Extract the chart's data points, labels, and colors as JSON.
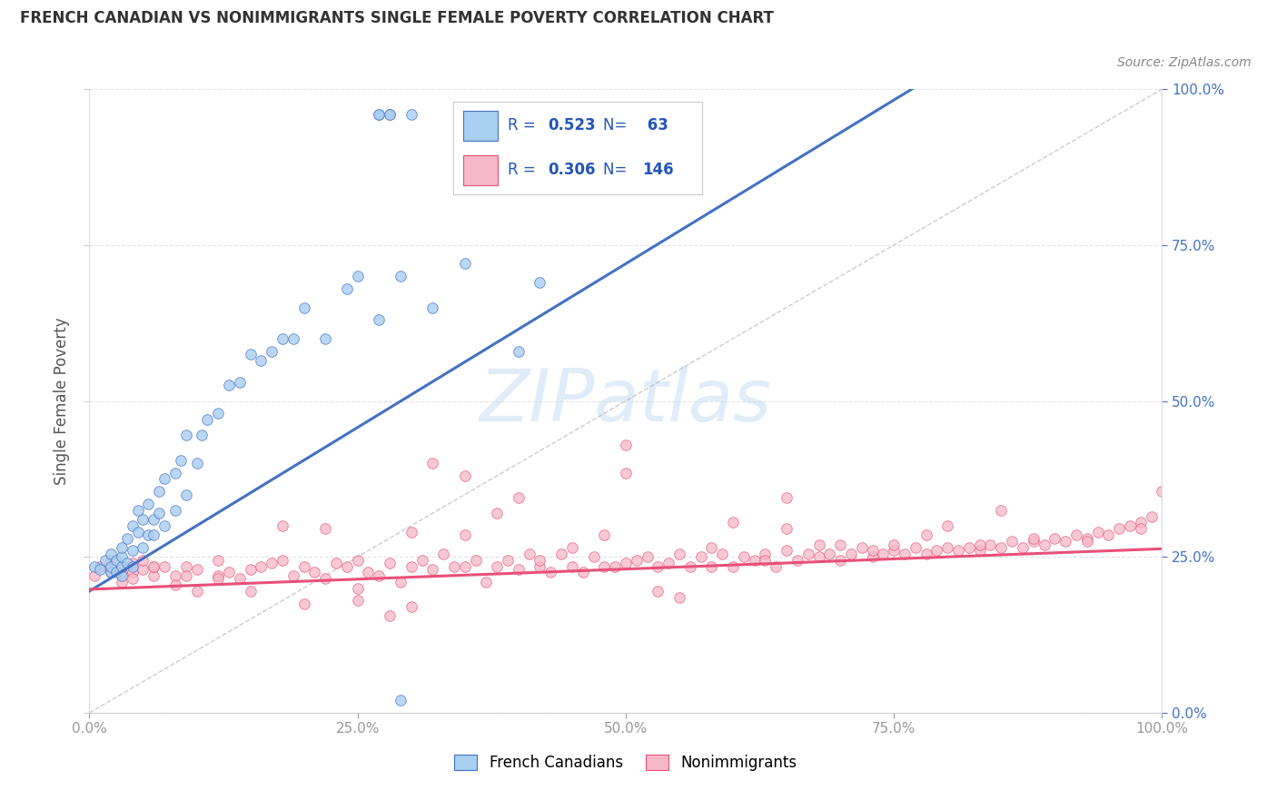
{
  "title": "FRENCH CANADIAN VS NONIMMIGRANTS SINGLE FEMALE POVERTY CORRELATION CHART",
  "source": "Source: ZipAtlas.com",
  "ylabel": "Single Female Poverty",
  "legend_label_1": "French Canadians",
  "legend_label_2": "Nonimmigrants",
  "r1": 0.523,
  "n1": 63,
  "r2": 0.306,
  "n2": 146,
  "color1": "#A8CEF0",
  "color2": "#F5B8C8",
  "line_color1": "#4472C4",
  "line_color2": "#E8507A",
  "right_tick_color": "#4472C4",
  "watermark_color": "#C8DFF5",
  "background_color": "#FFFFFF",
  "title_color": "#333333",
  "source_color": "#888888",
  "ylabel_color": "#555555",
  "grid_color": "#E0E0E0",
  "tick_color": "#999999",
  "legend_r_color": "#2255BB",
  "legend_n_color": "#2255BB",
  "xmin": 0.0,
  "xmax": 1.0,
  "ymin": -0.05,
  "ymax": 1.05,
  "fc_x": [
    0.005,
    0.01,
    0.015,
    0.02,
    0.02,
    0.02,
    0.025,
    0.025,
    0.03,
    0.03,
    0.03,
    0.03,
    0.035,
    0.035,
    0.04,
    0.04,
    0.04,
    0.045,
    0.045,
    0.05,
    0.05,
    0.055,
    0.055,
    0.06,
    0.06,
    0.065,
    0.065,
    0.07,
    0.07,
    0.08,
    0.08,
    0.085,
    0.09,
    0.09,
    0.1,
    0.105,
    0.11,
    0.12,
    0.13,
    0.14,
    0.15,
    0.16,
    0.17,
    0.18,
    0.19,
    0.2,
    0.22,
    0.24,
    0.25,
    0.27,
    0.28,
    0.29,
    0.3,
    0.32,
    0.35,
    0.4,
    0.42,
    0.52,
    0.53,
    0.27,
    0.27,
    0.28,
    0.29
  ],
  "fc_y": [
    0.235,
    0.23,
    0.245,
    0.225,
    0.235,
    0.255,
    0.225,
    0.245,
    0.22,
    0.235,
    0.25,
    0.265,
    0.24,
    0.28,
    0.235,
    0.26,
    0.3,
    0.29,
    0.325,
    0.265,
    0.31,
    0.285,
    0.335,
    0.285,
    0.31,
    0.32,
    0.355,
    0.3,
    0.375,
    0.325,
    0.385,
    0.405,
    0.35,
    0.445,
    0.4,
    0.445,
    0.47,
    0.48,
    0.525,
    0.53,
    0.575,
    0.565,
    0.58,
    0.6,
    0.6,
    0.65,
    0.6,
    0.68,
    0.7,
    0.63,
    0.96,
    0.7,
    0.96,
    0.65,
    0.72,
    0.58,
    0.69,
    0.96,
    0.96,
    0.96,
    0.96,
    0.96,
    0.02
  ],
  "ni_x": [
    0.005,
    0.01,
    0.02,
    0.02,
    0.03,
    0.03,
    0.04,
    0.04,
    0.05,
    0.05,
    0.06,
    0.06,
    0.07,
    0.08,
    0.09,
    0.1,
    0.12,
    0.12,
    0.14,
    0.15,
    0.16,
    0.17,
    0.18,
    0.19,
    0.2,
    0.21,
    0.22,
    0.23,
    0.24,
    0.25,
    0.26,
    0.27,
    0.28,
    0.29,
    0.3,
    0.31,
    0.32,
    0.33,
    0.34,
    0.35,
    0.36,
    0.37,
    0.38,
    0.39,
    0.4,
    0.41,
    0.42,
    0.43,
    0.44,
    0.45,
    0.46,
    0.47,
    0.48,
    0.49,
    0.5,
    0.51,
    0.52,
    0.53,
    0.54,
    0.55,
    0.56,
    0.57,
    0.58,
    0.59,
    0.6,
    0.61,
    0.62,
    0.63,
    0.64,
    0.65,
    0.66,
    0.67,
    0.68,
    0.69,
    0.7,
    0.71,
    0.72,
    0.73,
    0.74,
    0.75,
    0.76,
    0.77,
    0.78,
    0.79,
    0.8,
    0.81,
    0.82,
    0.83,
    0.84,
    0.85,
    0.86,
    0.87,
    0.88,
    0.89,
    0.9,
    0.91,
    0.92,
    0.93,
    0.94,
    0.95,
    0.96,
    0.97,
    0.98,
    0.99,
    1.0,
    0.18,
    0.22,
    0.3,
    0.35,
    0.25,
    0.3,
    0.4,
    0.5,
    0.1,
    0.2,
    0.6,
    0.7,
    0.8,
    0.5,
    0.65,
    0.75,
    0.85,
    0.35,
    0.45,
    0.55,
    0.65,
    0.25,
    0.28,
    0.32,
    0.38,
    0.42,
    0.48,
    0.53,
    0.58,
    0.63,
    0.68,
    0.73,
    0.78,
    0.83,
    0.88,
    0.93,
    0.98,
    0.15,
    0.12,
    0.08,
    0.06,
    0.04,
    0.03,
    0.09,
    0.13
  ],
  "ni_y": [
    0.22,
    0.235,
    0.225,
    0.245,
    0.225,
    0.235,
    0.225,
    0.24,
    0.23,
    0.245,
    0.22,
    0.235,
    0.235,
    0.22,
    0.235,
    0.23,
    0.22,
    0.245,
    0.215,
    0.23,
    0.235,
    0.24,
    0.245,
    0.22,
    0.235,
    0.225,
    0.215,
    0.24,
    0.235,
    0.245,
    0.225,
    0.22,
    0.24,
    0.21,
    0.235,
    0.245,
    0.23,
    0.255,
    0.235,
    0.235,
    0.245,
    0.21,
    0.235,
    0.245,
    0.23,
    0.255,
    0.235,
    0.225,
    0.255,
    0.235,
    0.225,
    0.25,
    0.235,
    0.235,
    0.24,
    0.245,
    0.25,
    0.235,
    0.24,
    0.255,
    0.235,
    0.25,
    0.235,
    0.255,
    0.235,
    0.25,
    0.245,
    0.255,
    0.235,
    0.26,
    0.245,
    0.255,
    0.25,
    0.255,
    0.245,
    0.255,
    0.265,
    0.25,
    0.255,
    0.26,
    0.255,
    0.265,
    0.255,
    0.26,
    0.265,
    0.26,
    0.265,
    0.26,
    0.27,
    0.265,
    0.275,
    0.265,
    0.275,
    0.27,
    0.28,
    0.275,
    0.285,
    0.28,
    0.29,
    0.285,
    0.295,
    0.3,
    0.305,
    0.315,
    0.355,
    0.3,
    0.295,
    0.29,
    0.38,
    0.2,
    0.17,
    0.345,
    0.385,
    0.195,
    0.175,
    0.305,
    0.27,
    0.3,
    0.43,
    0.345,
    0.27,
    0.325,
    0.285,
    0.265,
    0.185,
    0.295,
    0.18,
    0.155,
    0.4,
    0.32,
    0.245,
    0.285,
    0.195,
    0.265,
    0.245,
    0.27,
    0.26,
    0.285,
    0.27,
    0.28,
    0.275,
    0.295,
    0.195,
    0.215,
    0.205,
    0.235,
    0.215,
    0.21,
    0.22,
    0.225
  ]
}
